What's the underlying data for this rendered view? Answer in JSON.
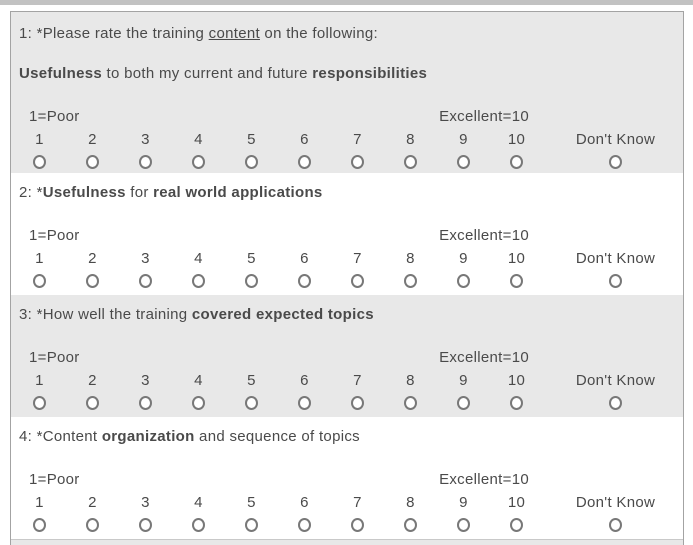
{
  "page": {
    "background": "#ffffff",
    "top_strip_color": "#c2c2c2",
    "panel_border_color": "#a3a3a3",
    "row_gray": "#e8e8e8",
    "row_white": "#ffffff",
    "text_color": "#4a4a4a",
    "radio_border_color": "#787878"
  },
  "scale": {
    "low_label": "1=Poor",
    "high_label": "Excellent=10",
    "options": [
      "1",
      "2",
      "3",
      "4",
      "5",
      "6",
      "7",
      "8",
      "9",
      "10"
    ],
    "dont_know_label": "Don't Know"
  },
  "questions": [
    {
      "id": "q1",
      "shaded": true,
      "lines": [
        [
          {
            "text": "1: *Please rate the training "
          },
          {
            "text": "content",
            "underline": true
          },
          {
            "text": " on the following:"
          }
        ],
        [
          {
            "text": "Usefulness",
            "bold": true
          },
          {
            "text": " to both my current and future "
          },
          {
            "text": "responsibilities",
            "bold": true
          }
        ]
      ]
    },
    {
      "id": "q2",
      "shaded": false,
      "lines": [
        [
          {
            "text": "2: *"
          },
          {
            "text": "Usefulness",
            "bold": true
          },
          {
            "text": " for "
          },
          {
            "text": "real world applications",
            "bold": true
          }
        ]
      ]
    },
    {
      "id": "q3",
      "shaded": true,
      "lines": [
        [
          {
            "text": "3: *How well the training "
          },
          {
            "text": "covered expected topics",
            "bold": true
          }
        ]
      ]
    },
    {
      "id": "q4",
      "shaded": false,
      "lines": [
        [
          {
            "text": "4: *Content "
          },
          {
            "text": "organization",
            "bold": true
          },
          {
            "text": " and sequence of topics"
          }
        ]
      ]
    }
  ],
  "partial_next_row": {
    "shaded": true
  }
}
